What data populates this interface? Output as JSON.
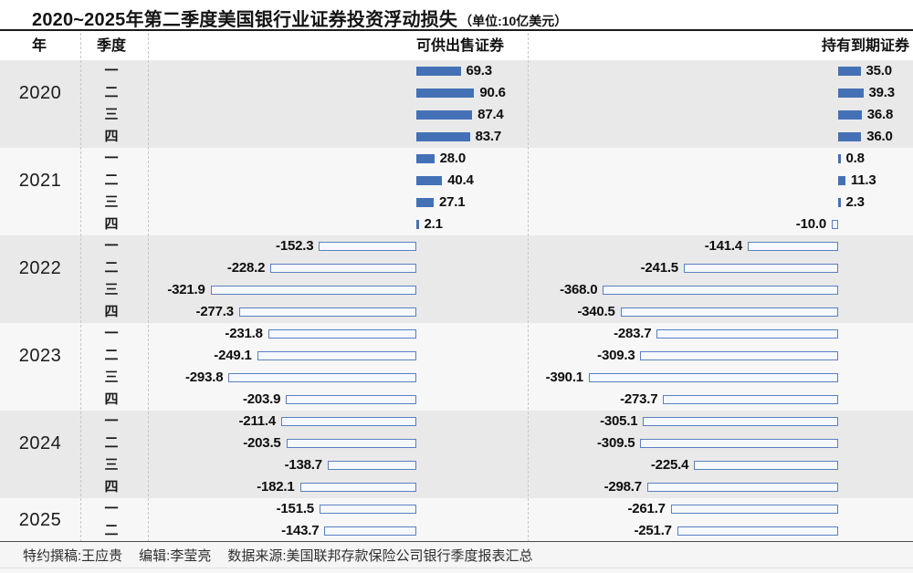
{
  "chart_data": {
    "type": "bar",
    "orientation": "horizontal",
    "title": "2020~2025年第二季度美国银行业证券投资浮动损失",
    "unit": "（单位:10亿美元）",
    "columns": [
      "年",
      "季度",
      "可供出售证券",
      "持有到期证券"
    ],
    "quarter_glyphs": [
      "一",
      "二",
      "三",
      "四"
    ],
    "groups": [
      {
        "year": "2020",
        "afs": [
          69.3,
          90.6,
          87.4,
          83.7
        ],
        "htm": [
          35.0,
          39.3,
          36.8,
          36.0
        ]
      },
      {
        "year": "2021",
        "afs": [
          28.0,
          40.4,
          27.1,
          2.1
        ],
        "htm": [
          0.8,
          11.3,
          2.3,
          -10.0
        ]
      },
      {
        "year": "2022",
        "afs": [
          -152.3,
          -228.2,
          -321.9,
          -277.3
        ],
        "htm": [
          -141.4,
          -241.5,
          -368.0,
          -340.5
        ]
      },
      {
        "year": "2023",
        "afs": [
          -231.8,
          -249.1,
          -293.8,
          -203.9
        ],
        "htm": [
          -283.7,
          -309.3,
          -390.1,
          -273.7
        ]
      },
      {
        "year": "2024",
        "afs": [
          -211.4,
          -203.5,
          -138.7,
          -182.1
        ],
        "htm": [
          -305.1,
          -309.5,
          -225.4,
          -298.7
        ]
      },
      {
        "year": "2025",
        "afs": [
          -151.5,
          -143.7
        ],
        "htm": [
          -261.7,
          -251.7
        ]
      }
    ],
    "legend": "none",
    "style_note": "positive values solid blue bars extending right of zero axis; negative values hollow outlined bars extending left, labels beside bar ends"
  },
  "colors": {
    "bar_solid": "#4471b6",
    "bar_hollow_border": "#5a7fc0",
    "bar_hollow_fill": "#f5f9fd",
    "band_gray": "#e9e9e9",
    "band_light": "#f7f7f7"
  },
  "footer": {
    "credit": "特约撰稿:王应贵",
    "editor": "编辑:李莹亮",
    "source": "数据来源:美国联邦存款保险公司银行季度报表汇总"
  }
}
